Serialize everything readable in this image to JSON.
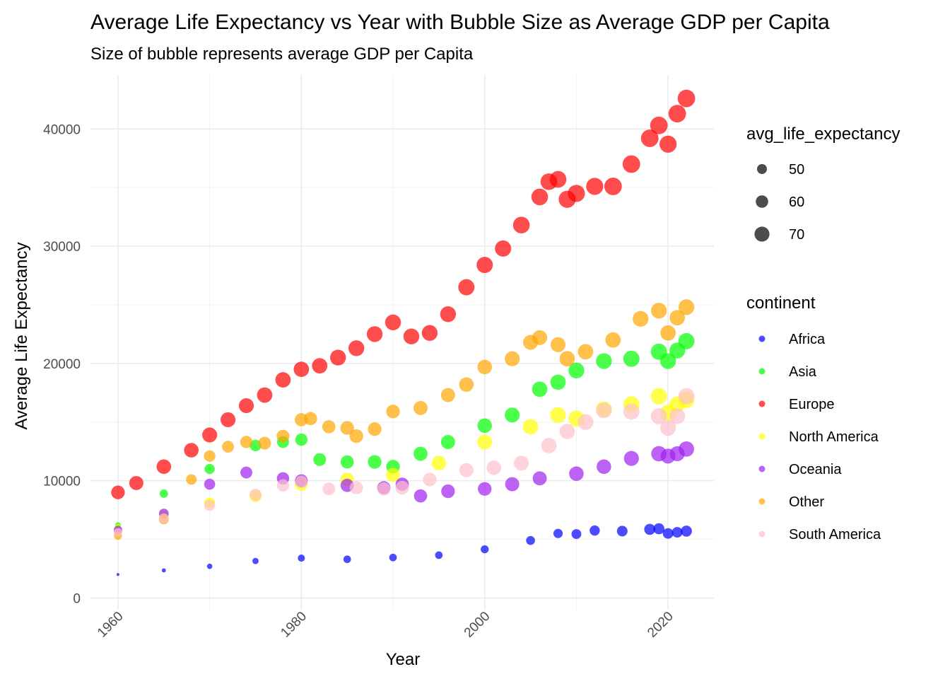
{
  "chart_data": {
    "type": "scatter",
    "title": "Average Life Expectancy vs Year with Bubble Size as Average GDP per Capita",
    "subtitle": "Size of bubble represents average GDP per Capita",
    "xlabel": "Year",
    "ylabel": "Average Life Expectancy",
    "xlim": [
      1960,
      2022
    ],
    "ylim": [
      0,
      44000
    ],
    "x_ticks": [
      "1960",
      "1980",
      "2000",
      "2020"
    ],
    "y_ticks": [
      "0",
      "10000",
      "20000",
      "30000",
      "40000"
    ],
    "grid": true,
    "legend_position": "right",
    "size_legend": {
      "title": "avg_life_expectancy",
      "labels": [
        "50",
        "60",
        "70"
      ],
      "values": [
        50,
        60,
        70
      ]
    },
    "color_legend": {
      "title": "continent"
    },
    "series": [
      {
        "name": "Africa",
        "color": "#0000ff",
        "x": [
          1960,
          1965,
          1970,
          1975,
          1980,
          1985,
          1990,
          1995,
          2000,
          2005,
          2008,
          2010,
          2012,
          2015,
          2018,
          2019,
          2020,
          2021,
          2022
        ],
        "y": [
          2000,
          2350,
          2700,
          3150,
          3400,
          3300,
          3450,
          3650,
          4150,
          4900,
          5500,
          5450,
          5750,
          5700,
          5850,
          5900,
          5500,
          5600,
          5700
        ],
        "size": [
          43,
          46,
          49,
          51,
          53,
          54,
          54,
          54,
          55,
          57,
          58,
          59,
          60,
          61,
          62,
          62,
          61,
          61,
          62
        ]
      },
      {
        "name": "Asia",
        "color": "#00ff00",
        "x": [
          1960,
          1965,
          1970,
          1975,
          1978,
          1980,
          1982,
          1985,
          1988,
          1990,
          1993,
          1996,
          2000,
          2003,
          2006,
          2008,
          2010,
          2013,
          2016,
          2019,
          2020,
          2021,
          2022
        ],
        "y": [
          6200,
          8900,
          11000,
          13000,
          13300,
          13500,
          11800,
          11600,
          11600,
          11200,
          12300,
          13300,
          14700,
          15600,
          17800,
          18400,
          19400,
          20200,
          20400,
          21000,
          20200,
          21100,
          21900
        ],
        "size": [
          50,
          56,
          60,
          63,
          64,
          65,
          66,
          67,
          68,
          68,
          69,
          69,
          70,
          71,
          72,
          72,
          73,
          73,
          74,
          74,
          73,
          73,
          74
        ]
      },
      {
        "name": "Europe",
        "color": "#ff0000",
        "x": [
          1960,
          1962,
          1965,
          1968,
          1970,
          1972,
          1974,
          1976,
          1978,
          1980,
          1982,
          1984,
          1986,
          1988,
          1990,
          1992,
          1994,
          1996,
          1998,
          2000,
          2002,
          2004,
          2006,
          2007,
          2008,
          2009,
          2010,
          2012,
          2014,
          2016,
          2018,
          2019,
          2020,
          2021,
          2022
        ],
        "y": [
          9000,
          9800,
          11200,
          12600,
          13900,
          15200,
          16400,
          17300,
          18600,
          19500,
          19800,
          20500,
          21300,
          22500,
          23500,
          22300,
          22600,
          24200,
          26500,
          28400,
          29800,
          31800,
          34200,
          35500,
          35700,
          34000,
          34500,
          35100,
          35100,
          37000,
          39200,
          40300,
          38700,
          41300,
          42600
        ],
        "size": [
          68,
          69,
          70,
          70,
          71,
          71,
          71,
          72,
          72,
          72,
          72,
          73,
          73,
          73,
          73,
          73,
          73,
          73,
          74,
          74,
          74,
          75,
          75,
          75,
          75,
          76,
          76,
          76,
          77,
          77,
          77,
          77,
          76,
          77,
          77
        ]
      },
      {
        "name": "North America",
        "color": "#ffff00",
        "x": [
          1960,
          1965,
          1970,
          1975,
          1980,
          1985,
          1990,
          1995,
          2000,
          2005,
          2008,
          2010,
          2013,
          2016,
          2019,
          2020,
          2021,
          2022
        ],
        "y": [
          6000,
          7100,
          8100,
          8700,
          9700,
          10100,
          10500,
          11500,
          13300,
          14600,
          15600,
          15300,
          16100,
          16500,
          17200,
          15800,
          16500,
          16900
        ],
        "size": [
          53,
          58,
          62,
          65,
          67,
          68,
          69,
          70,
          71,
          72,
          73,
          73,
          73,
          74,
          74,
          73,
          73,
          74
        ]
      },
      {
        "name": "Oceania",
        "color": "#a020f0",
        "x": [
          1960,
          1965,
          1970,
          1974,
          1978,
          1980,
          1985,
          1989,
          1991,
          1993,
          1996,
          2000,
          2003,
          2006,
          2010,
          2013,
          2016,
          2019,
          2020,
          2021,
          2022
        ],
        "y": [
          5800,
          7200,
          9700,
          10700,
          10200,
          10000,
          9600,
          9400,
          9700,
          8700,
          9100,
          9300,
          9700,
          10200,
          10600,
          11200,
          11900,
          12300,
          12100,
          12300,
          12700
        ],
        "size": [
          56,
          59,
          62,
          64,
          65,
          66,
          67,
          67,
          67,
          67,
          68,
          68,
          69,
          69,
          70,
          70,
          71,
          72,
          71,
          71,
          72
        ]
      },
      {
        "name": "Other",
        "color": "#ffa500",
        "x": [
          1960,
          1965,
          1968,
          1970,
          1972,
          1974,
          1976,
          1978,
          1980,
          1981,
          1983,
          1985,
          1986,
          1988,
          1990,
          1993,
          1996,
          1998,
          2000,
          2003,
          2005,
          2006,
          2008,
          2009,
          2011,
          2014,
          2017,
          2019,
          2020,
          2021,
          2022
        ],
        "y": [
          5300,
          6700,
          10100,
          12100,
          12900,
          13300,
          13200,
          13800,
          15200,
          15300,
          14600,
          14500,
          13800,
          14400,
          15900,
          16200,
          17300,
          18200,
          19700,
          20400,
          21800,
          22200,
          21600,
          20400,
          21000,
          22000,
          23800,
          24500,
          22600,
          23900,
          24800
        ],
        "size": [
          55,
          59,
          61,
          63,
          64,
          65,
          66,
          66,
          67,
          67,
          67,
          68,
          68,
          68,
          68,
          69,
          69,
          70,
          70,
          71,
          71,
          71,
          71,
          72,
          72,
          72,
          73,
          73,
          72,
          72,
          73
        ]
      },
      {
        "name": "South America",
        "color": "#ffc0cb",
        "x": [
          1960,
          1965,
          1970,
          1975,
          1978,
          1980,
          1983,
          1986,
          1989,
          1991,
          1994,
          1998,
          2001,
          2004,
          2007,
          2009,
          2011,
          2013,
          2016,
          2019,
          2020,
          2021,
          2022
        ],
        "y": [
          5600,
          6800,
          7900,
          8800,
          9600,
          9900,
          9300,
          9400,
          9300,
          9400,
          10100,
          10900,
          11100,
          11500,
          13000,
          14200,
          15000,
          16000,
          15900,
          15500,
          14500,
          15500,
          17200
        ],
        "size": [
          56,
          59,
          62,
          64,
          65,
          65,
          66,
          67,
          67,
          68,
          68,
          69,
          70,
          71,
          72,
          72,
          73,
          73,
          74,
          74,
          73,
          73,
          74
        ]
      }
    ]
  }
}
